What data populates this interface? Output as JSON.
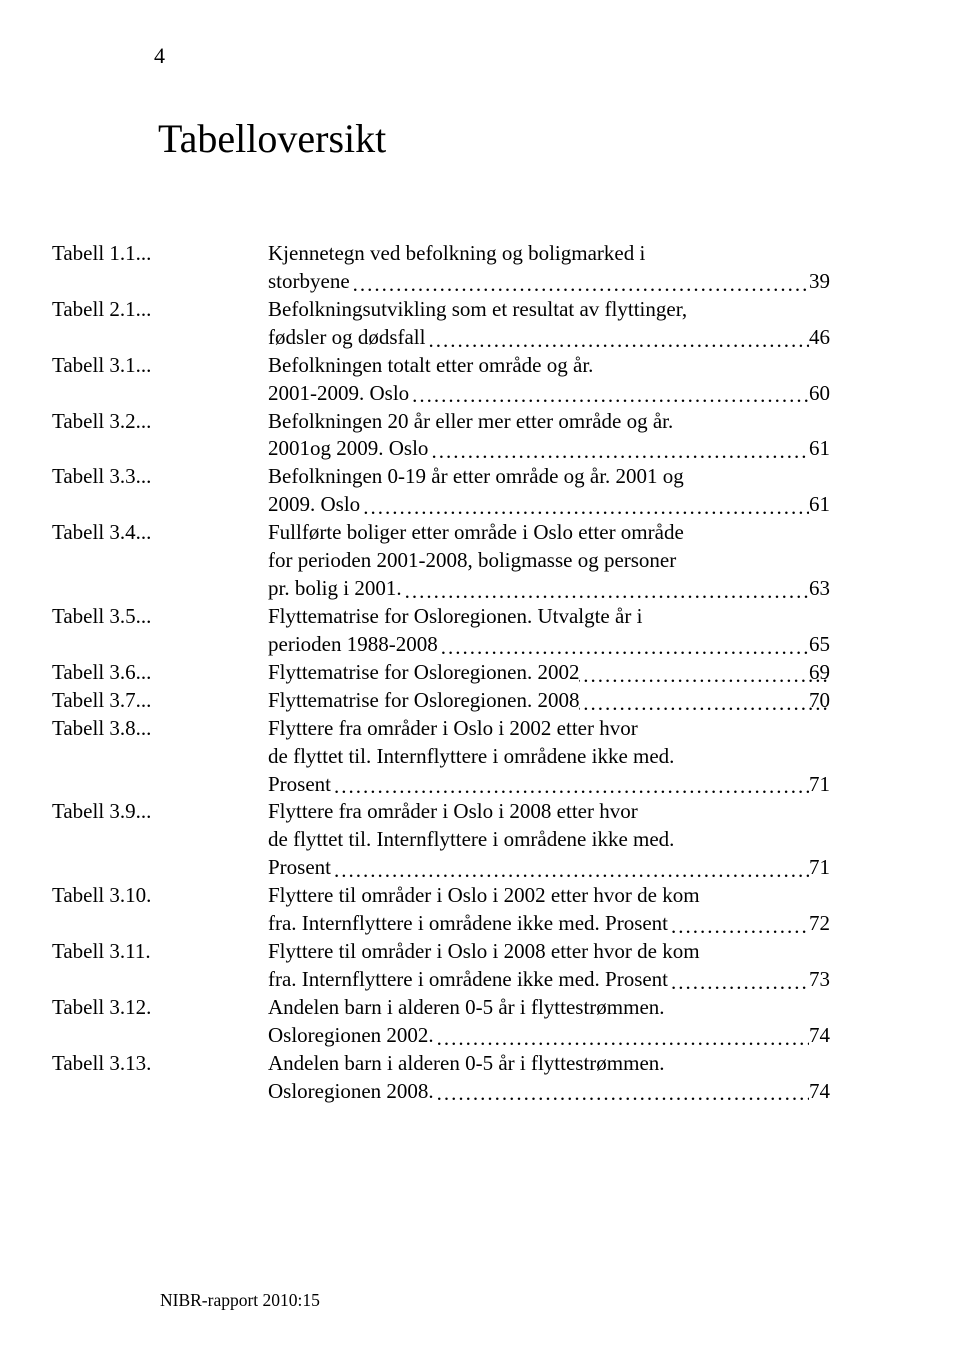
{
  "page_number": "4",
  "title": "Tabelloversikt",
  "footer": "NIBR-rapport 2010:15",
  "colors": {
    "text": "#000000",
    "background": "#ffffff"
  },
  "typography": {
    "title_fontsize": 40,
    "body_fontsize": 21,
    "footer_fontsize": 17.5,
    "font_family": "Garamond"
  },
  "entries": [
    {
      "label": "Tabell 1.1",
      "text_lines": [
        "Kjennetegn ved befolkning og boligmarked i",
        "storbyene"
      ],
      "page": "39"
    },
    {
      "label": "Tabell 2.1",
      "text_lines": [
        "Befolkningsutvikling som et resultat av flyttinger,",
        "fødsler og dødsfall"
      ],
      "page": "46"
    },
    {
      "label": "Tabell 3.1",
      "text_lines": [
        "Befolkningen totalt etter område og år.",
        "2001-2009. Oslo"
      ],
      "page": "60"
    },
    {
      "label": "Tabell 3.2",
      "text_lines": [
        "Befolkningen 20 år eller mer etter område og år.",
        "2001og 2009. Oslo"
      ],
      "page": "61"
    },
    {
      "label": "Tabell 3.3",
      "text_lines": [
        "Befolkningen 0-19 år etter område og år. 2001 og",
        "2009. Oslo"
      ],
      "page": "61"
    },
    {
      "label": "Tabell 3.4",
      "text_lines": [
        "Fullførte boliger etter område i Oslo etter område",
        "for perioden 2001-2008, boligmasse og personer",
        "pr. bolig i 2001."
      ],
      "page": "63"
    },
    {
      "label": "Tabell 3.5",
      "text_lines": [
        "Flyttematrise for Osloregionen. Utvalgte år i",
        "perioden 1988-2008"
      ],
      "page": "65"
    },
    {
      "label": "Tabell 3.6",
      "text_lines": [
        "Flyttematrise for Osloregionen. 2002"
      ],
      "page": "69"
    },
    {
      "label": "Tabell 3.7",
      "text_lines": [
        "Flyttematrise for Osloregionen. 2008"
      ],
      "page": "70"
    },
    {
      "label": "Tabell 3.8",
      "text_lines": [
        "Flyttere fra områder i Oslo i 2002 etter hvor",
        "de flyttet til. Internflyttere i områdene ikke med.",
        "Prosent"
      ],
      "page": "71"
    },
    {
      "label": "Tabell 3.9",
      "text_lines": [
        "Flyttere fra områder i Oslo i 2008 etter hvor",
        "de flyttet til. Internflyttere i områdene ikke med.",
        "Prosent"
      ],
      "page": "71"
    },
    {
      "label": "Tabell 3.10",
      "text_lines": [
        "Flyttere til områder i Oslo i 2002 etter hvor de kom",
        "fra. Internflyttere i områdene ikke med. Prosent"
      ],
      "page": "72"
    },
    {
      "label": "Tabell 3.11",
      "text_lines": [
        "Flyttere til områder i Oslo i 2008 etter hvor de kom",
        "fra. Internflyttere i områdene ikke med. Prosent"
      ],
      "page": "73"
    },
    {
      "label": "Tabell 3.12",
      "text_lines": [
        "Andelen barn i alderen 0-5 år i flyttestrømmen.",
        "Osloregionen 2002."
      ],
      "page": "74"
    },
    {
      "label": "Tabell 3.13",
      "text_lines": [
        "Andelen barn i alderen 0-5 år i flyttestrømmen.",
        "Osloregionen 2008."
      ],
      "page": "74"
    }
  ]
}
